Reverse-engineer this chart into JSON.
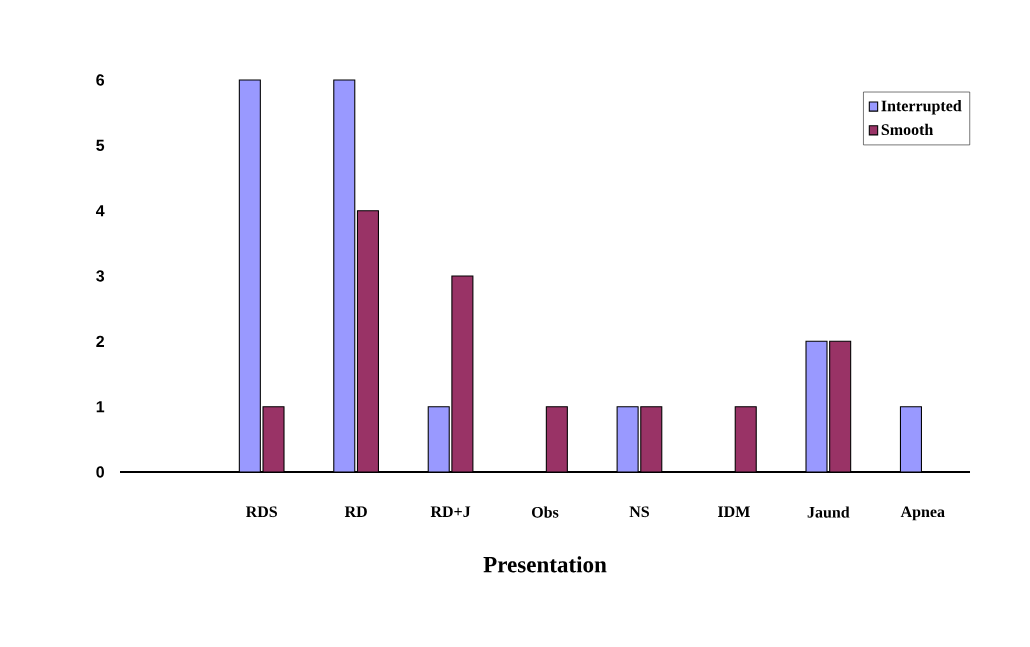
{
  "chart_data": {
    "type": "bar",
    "xlabel": "Presentation",
    "categories": [
      null,
      "RDS",
      "RD",
      "RD+J",
      "Obs",
      "NS",
      "IDM",
      "Jaund",
      "Apnea"
    ],
    "series": [
      {
        "name": "Interrupted",
        "color": "#9999ff",
        "values": [
          null,
          6,
          6,
          1,
          null,
          1,
          null,
          2,
          1
        ]
      },
      {
        "name": "Smooth",
        "color": "#993366",
        "values": [
          null,
          1,
          4,
          3,
          1,
          1,
          1,
          2,
          null
        ]
      }
    ],
    "ylim": [
      0,
      6
    ],
    "yticks": [
      0,
      1,
      2,
      3,
      4,
      5,
      6
    ],
    "legend": "top right"
  }
}
